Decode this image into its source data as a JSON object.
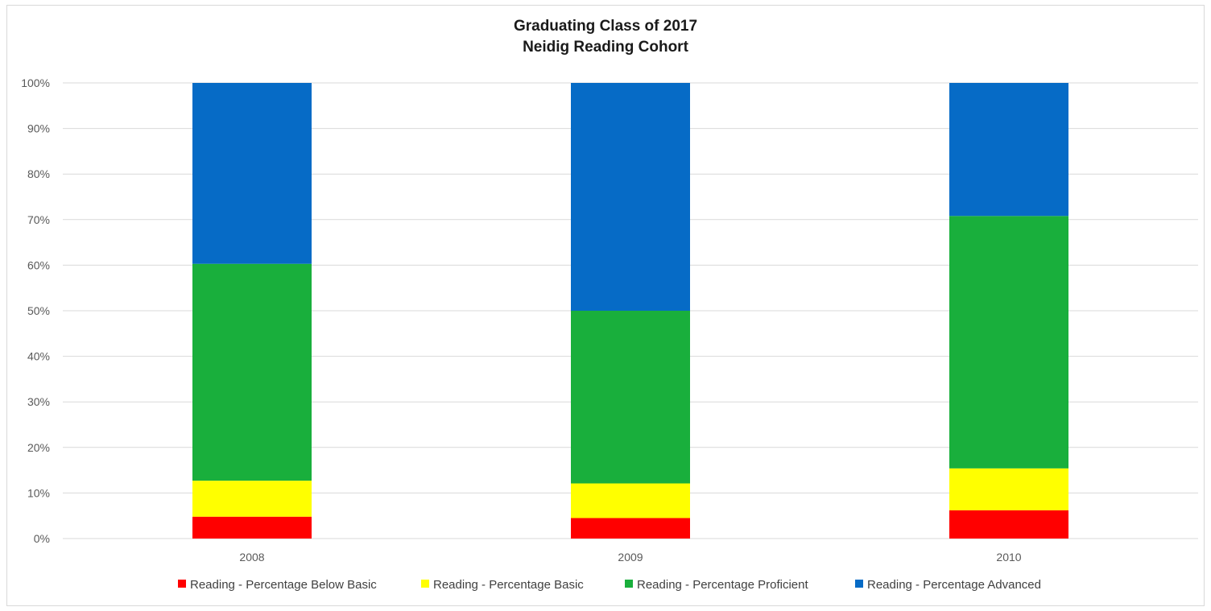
{
  "chart_data": {
    "type": "bar",
    "stacked": true,
    "title": "Graduating Class of 2017",
    "subtitle": "Neidig Reading Cohort",
    "xlabel": "",
    "ylabel": "",
    "categories": [
      "2008",
      "2009",
      "2010"
    ],
    "ylim": [
      0,
      100
    ],
    "y_ticks": [
      "0%",
      "10%",
      "20%",
      "30%",
      "40%",
      "50%",
      "60%",
      "70%",
      "80%",
      "90%",
      "100%"
    ],
    "grid": true,
    "legend_position": "bottom",
    "series": [
      {
        "name": "Reading - Percentage Below Basic",
        "color": "#ff0000",
        "values": [
          4.8,
          4.5,
          6.2
        ]
      },
      {
        "name": "Reading - Percentage Basic",
        "color": "#ffff00",
        "values": [
          7.9,
          7.6,
          9.2
        ]
      },
      {
        "name": "Reading - Percentage Proficient",
        "color": "#19af3c",
        "values": [
          47.6,
          37.9,
          55.4
        ]
      },
      {
        "name": "Reading - Percentage Advanced",
        "color": "#066bc6",
        "values": [
          39.7,
          50.0,
          29.2
        ]
      }
    ]
  }
}
